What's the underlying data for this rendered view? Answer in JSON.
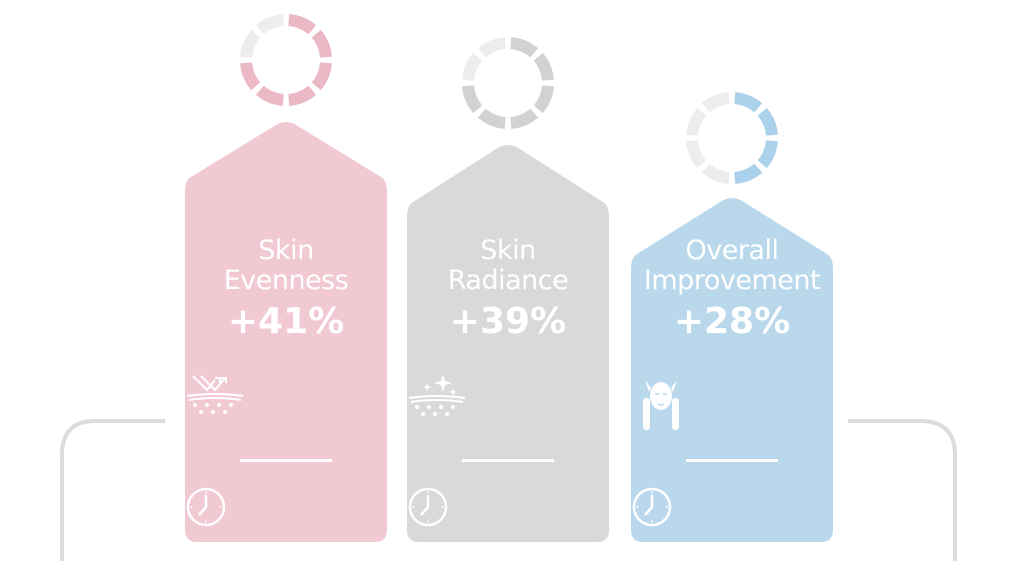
{
  "cards": [
    {
      "line1": "Skin",
      "line2": "Evenness",
      "value": "+41%",
      "icon": "skin-evenness-icon",
      "color": "#f0c9d3",
      "ring_color": "#ebb9c6",
      "ring_filled": 6,
      "ring_total": 8
    },
    {
      "line1": "Skin",
      "line2": "Radiance",
      "value": "+39%",
      "icon": "skin-radiance-icon",
      "color": "#d9d9d9",
      "ring_color": "#d2d2d2",
      "ring_filled": 6,
      "ring_total": 8
    },
    {
      "line1": "Overall",
      "line2": "Improvement",
      "value": "+28%",
      "icon": "face-care-icon",
      "color": "#b9d8ec",
      "ring_color": "#acd1ea",
      "ring_filled": 4,
      "ring_total": 8
    }
  ],
  "ring_empty_color": "#ededed",
  "bracket_color": "#dcdcdc"
}
